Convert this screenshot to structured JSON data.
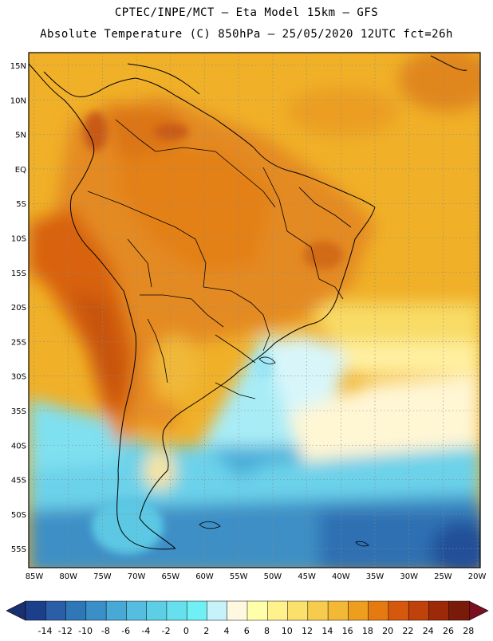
{
  "header": {
    "line1": "CPTEC/INPE/MCT –  Eta Model 15km – GFS",
    "line2": "Absolute Temperature (C) 850hPa – 25/05/2020 12UTC fct=26h"
  },
  "map": {
    "lat_labels": [
      "15N",
      "10N",
      "5N",
      "EQ",
      "5S",
      "10S",
      "15S",
      "20S",
      "25S",
      "30S",
      "35S",
      "40S",
      "45S",
      "50S",
      "55S"
    ],
    "lon_labels": [
      "85W",
      "80W",
      "75W",
      "70W",
      "65W",
      "60W",
      "55W",
      "50W",
      "45W",
      "40W",
      "35W",
      "30W",
      "25W",
      "20W"
    ],
    "grid": "dotted",
    "field": "Absolute Temperature (C) 850hPa"
  },
  "colorbar": {
    "labels": [
      "-14",
      "-12",
      "-10",
      "-8",
      "-6",
      "-4",
      "-2",
      "0",
      "2",
      "4",
      "6",
      "8",
      "10",
      "12",
      "14",
      "16",
      "18",
      "20",
      "22",
      "24",
      "26",
      "28"
    ],
    "colors": [
      "#1c3f8c",
      "#2a5ea6",
      "#2f78b8",
      "#3a8fc8",
      "#48a8d6",
      "#55bde0",
      "#5ccfe6",
      "#66e0ee",
      "#70f0f4",
      "#c6f2fa",
      "#fff8e0",
      "#ffffaa",
      "#fff28c",
      "#fbe06c",
      "#f7cc4e",
      "#f2b836",
      "#ee9e1e",
      "#e47a10",
      "#d6580c",
      "#bf420a",
      "#9c2a08",
      "#7a1a0a"
    ],
    "arrow_low": "#1a2f6f",
    "arrow_high": "#7a0f1f"
  }
}
